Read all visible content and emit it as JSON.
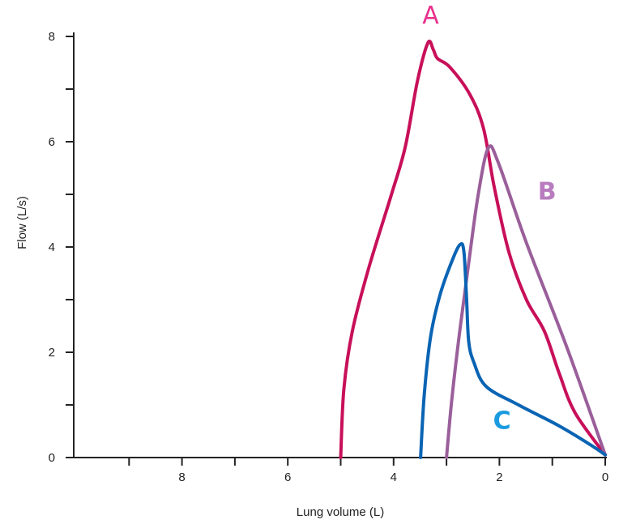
{
  "chart_data": {
    "type": "line",
    "title": "",
    "xlabel": "Lung volume (L)",
    "ylabel": "Flow (L/s)",
    "xlim": [
      10,
      0
    ],
    "x_reversed": true,
    "ylim": [
      0,
      8
    ],
    "x_ticks": [
      9,
      8,
      7,
      6,
      5,
      4,
      3,
      2,
      1,
      0
    ],
    "x_tick_labels": [
      {
        "v": 8,
        "label": "8"
      },
      {
        "v": 6,
        "label": "6"
      },
      {
        "v": 4,
        "label": "4"
      },
      {
        "v": 2,
        "label": "2"
      },
      {
        "v": 0,
        "label": "0"
      }
    ],
    "y_ticks": [
      0,
      1,
      2,
      3,
      4,
      5,
      6,
      7,
      8
    ],
    "y_tick_labels": [
      {
        "v": 0,
        "label": "0"
      },
      {
        "v": 2,
        "label": "2"
      },
      {
        "v": 4,
        "label": "4"
      },
      {
        "v": 6,
        "label": "6"
      },
      {
        "v": 8,
        "label": "8"
      }
    ],
    "grid": false,
    "series": [
      {
        "name": "A",
        "color": "#c8105a",
        "label_color": "#e8308c",
        "label_at": [
          3.3,
          8.25
        ],
        "x": [
          5.0,
          4.94,
          4.78,
          4.47,
          4.04,
          3.78,
          3.55,
          3.35,
          3.25,
          3.17,
          2.94,
          2.56,
          2.3,
          2.1,
          1.82,
          1.49,
          1.15,
          0.87,
          0.57,
          0.0
        ],
        "y": [
          0.0,
          1.3,
          2.4,
          3.6,
          5.0,
          5.9,
          7.15,
          7.88,
          7.75,
          7.58,
          7.42,
          6.9,
          6.25,
          5.15,
          3.9,
          3.0,
          2.4,
          1.6,
          0.85,
          0.05
        ]
      },
      {
        "name": "B",
        "color": "#9a5f9a",
        "label_color": "#b87cbf",
        "label_at": [
          1.1,
          4.9
        ],
        "x": [
          3.0,
          2.9,
          2.75,
          2.58,
          2.4,
          2.21,
          2.02,
          1.49,
          0.72,
          0.0
        ],
        "y": [
          0.0,
          1.1,
          2.4,
          3.7,
          5.0,
          5.88,
          5.6,
          4.08,
          2.08,
          0.05
        ]
      },
      {
        "name": "C",
        "color": "#0a64b4",
        "label_color": "#1a9be0",
        "label_at": [
          1.95,
          0.55
        ],
        "x": [
          3.49,
          3.42,
          3.3,
          3.12,
          2.89,
          2.74,
          2.67,
          2.62,
          2.58,
          2.48,
          2.25,
          1.64,
          0.87,
          0.26,
          0.0
        ],
        "y": [
          0.0,
          1.2,
          2.3,
          3.1,
          3.75,
          4.05,
          3.9,
          3.0,
          2.2,
          1.8,
          1.35,
          1.0,
          0.6,
          0.23,
          0.05
        ]
      }
    ]
  }
}
